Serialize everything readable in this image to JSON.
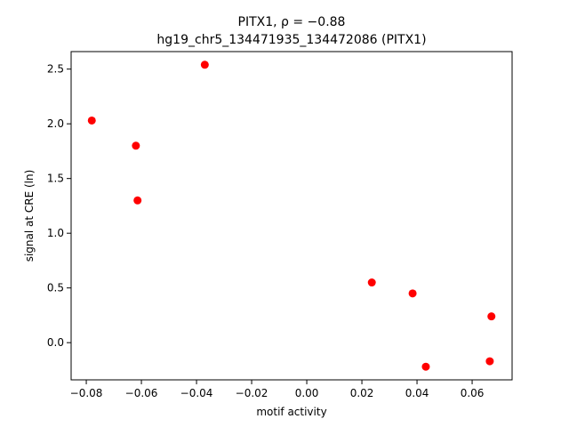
{
  "chart_data": {
    "type": "scatter",
    "title_line1": "PITX1, ρ = −0.88",
    "title_line2": "hg19_chr5_134471935_134472086 (PITX1)",
    "xlabel": "motif activity",
    "ylabel": "signal at CRE (ln)",
    "xlim": [
      -0.0855,
      0.0745
    ],
    "ylim": [
      -0.34,
      2.66
    ],
    "xticks": [
      -0.08,
      -0.06,
      -0.04,
      -0.02,
      0.0,
      0.02,
      0.04,
      0.06
    ],
    "xtick_labels": [
      "−0.08",
      "−0.06",
      "−0.04",
      "−0.02",
      "0.00",
      "0.02",
      "0.04",
      "0.06"
    ],
    "yticks": [
      0.0,
      0.5,
      1.0,
      1.5,
      2.0,
      2.5
    ],
    "ytick_labels": [
      "0.0",
      "0.5",
      "1.0",
      "1.5",
      "2.0",
      "2.5"
    ],
    "grid": false,
    "marker_color": "#ff0000",
    "points": [
      {
        "x": -0.078,
        "y": 2.03
      },
      {
        "x": -0.062,
        "y": 1.8
      },
      {
        "x": -0.0614,
        "y": 1.3
      },
      {
        "x": -0.037,
        "y": 2.54
      },
      {
        "x": 0.0236,
        "y": 0.55
      },
      {
        "x": 0.0384,
        "y": 0.45
      },
      {
        "x": 0.0432,
        "y": -0.22
      },
      {
        "x": 0.0664,
        "y": -0.17
      },
      {
        "x": 0.067,
        "y": 0.24
      }
    ]
  }
}
